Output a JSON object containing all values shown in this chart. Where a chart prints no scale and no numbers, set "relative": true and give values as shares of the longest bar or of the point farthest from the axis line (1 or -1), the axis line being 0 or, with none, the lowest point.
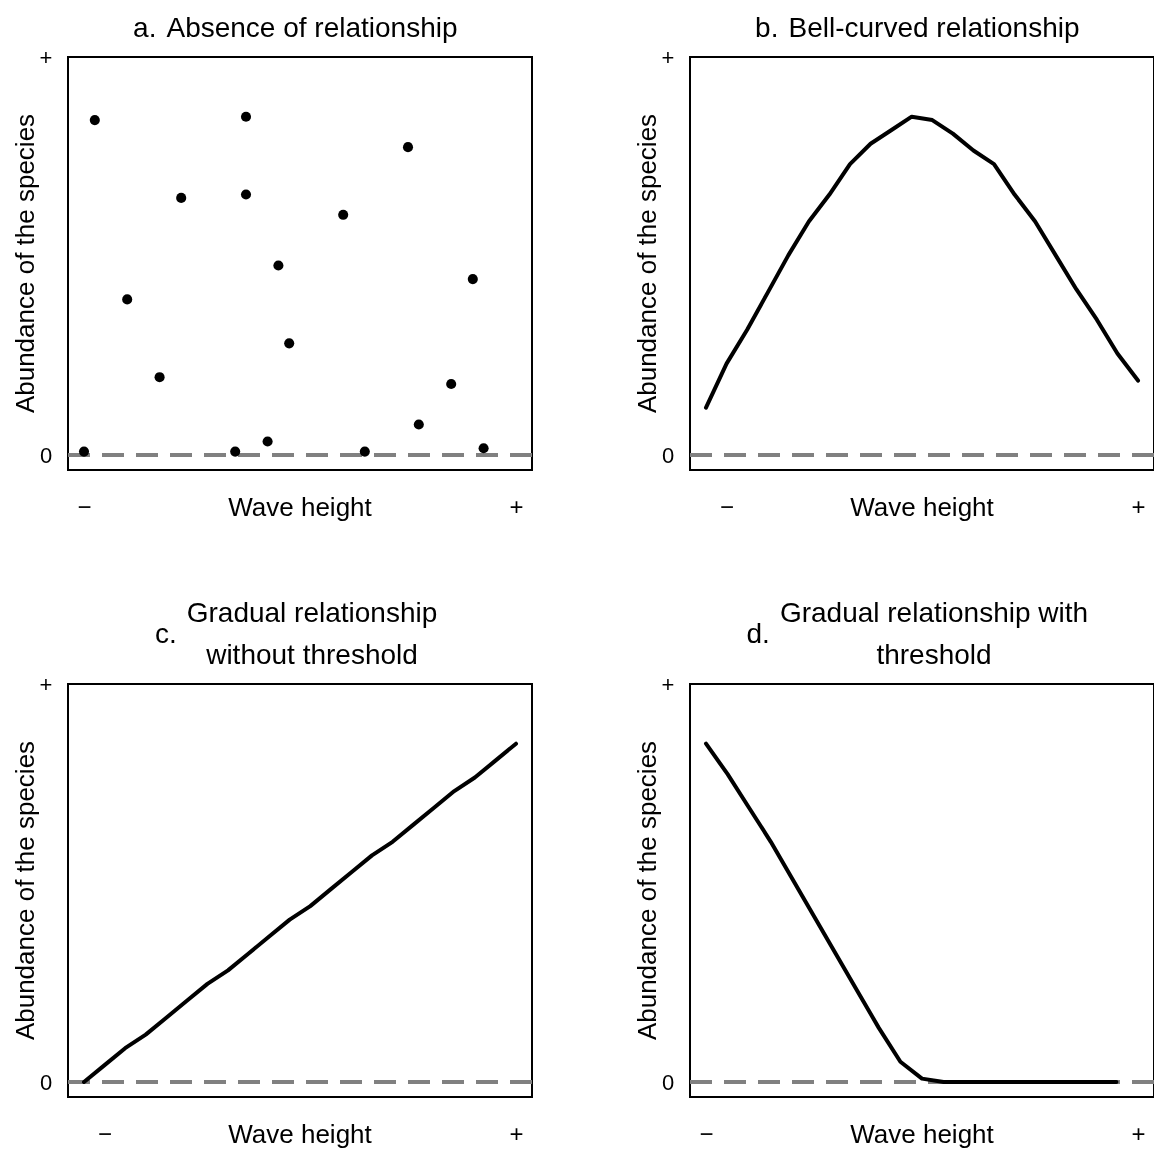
{
  "chart_data": [
    {
      "type": "scatter",
      "relative": true,
      "title": "Absence of relationship",
      "annotations": [
        "a.",
        "+",
        "0"
      ],
      "xlabel": "Wave height",
      "ylabel": "Abundance of the species",
      "marker": "circle",
      "categories": [
        "−",
        null,
        null,
        null,
        null,
        null,
        null,
        null,
        null,
        null,
        null,
        null,
        null,
        null,
        null,
        null,
        null,
        null,
        null,
        null,
        null,
        null,
        null,
        null,
        null,
        null,
        null,
        null,
        null,
        null,
        null,
        null,
        null,
        null,
        null,
        null,
        null,
        null,
        null,
        null,
        "+"
      ],
      "series": [
        {
          "color": "#000000",
          "values": [
            0.01,
            0.99,
            null,
            null,
            0.46,
            null,
            null,
            0.23,
            null,
            0.76,
            null,
            null,
            null,
            null,
            0.01,
            1,
            null,
            0.04,
            0.56,
            0.33,
            null,
            null,
            null,
            null,
            0.71,
            null,
            0.01,
            null,
            null,
            null,
            0.91,
            0.09,
            null,
            null,
            0.21,
            null,
            0.52,
            0.02,
            null,
            null,
            null
          ]
        },
        {
          "color": "#000000",
          "values": [
            null,
            null,
            null,
            null,
            null,
            null,
            null,
            null,
            null,
            null,
            null,
            null,
            null,
            null,
            null,
            0.77,
            null,
            null,
            null,
            null,
            null,
            null,
            null,
            null,
            null,
            null,
            null,
            null,
            null,
            null,
            null,
            null,
            null,
            null,
            null,
            null,
            null,
            null,
            null,
            null,
            null
          ]
        }
      ]
    },
    {
      "type": "line",
      "relative": true,
      "title": "Bell-curved relationship",
      "annotations": [
        "b.",
        "+",
        "0"
      ],
      "xlabel": "Wave height",
      "ylabel": "Abundance of the species",
      "marker": "none",
      "line_style": "solid",
      "categories": [
        null,
        "−",
        null,
        null,
        null,
        null,
        null,
        null,
        null,
        null,
        null,
        null,
        null,
        null,
        null,
        null,
        null,
        null,
        null,
        null,
        null,
        "+"
      ],
      "series": [
        {
          "color": "#000000",
          "values": [
            0.14,
            0.27,
            0.37,
            0.48,
            0.59,
            0.69,
            0.77,
            0.86,
            0.92,
            0.96,
            1,
            0.99,
            0.95,
            0.9,
            0.86,
            0.77,
            0.69,
            0.59,
            0.49,
            0.4,
            0.3,
            0.22
          ]
        }
      ]
    },
    {
      "type": "line",
      "relative": true,
      "title": "Gradual relationship without threshold",
      "annotations": [
        "c.",
        "+",
        "0"
      ],
      "xlabel": "Wave height",
      "ylabel": "Abundance of the species",
      "marker": "none",
      "line_style": "solid",
      "categories": [
        null,
        "−",
        null,
        null,
        null,
        null,
        null,
        null,
        null,
        null,
        null,
        null,
        null,
        null,
        null,
        null,
        null,
        null,
        null,
        null,
        null,
        "+"
      ],
      "series": [
        {
          "color": "#000000",
          "values": [
            0,
            0.05,
            0.1,
            0.14,
            0.19,
            0.24,
            0.29,
            0.33,
            0.38,
            0.43,
            0.48,
            0.52,
            0.57,
            0.62,
            0.67,
            0.71,
            0.76,
            0.81,
            0.86,
            0.9,
            0.95,
            1
          ]
        }
      ]
    },
    {
      "type": "line",
      "relative": true,
      "title": "Gradual relationship with threshold",
      "annotations": [
        "d.",
        "+",
        "0"
      ],
      "xlabel": "Wave height",
      "ylabel": "Abundance of the species",
      "marker": "none",
      "line_style": "solid",
      "categories": [
        "−",
        null,
        null,
        null,
        null,
        null,
        null,
        null,
        null,
        null,
        null,
        null,
        null,
        null,
        null,
        null,
        null,
        null,
        null,
        null,
        "+"
      ],
      "series": [
        {
          "color": "#000000",
          "values": [
            1,
            0.91,
            0.81,
            0.71,
            0.6,
            0.49,
            0.38,
            0.27,
            0.16,
            0.06,
            0.01,
            0,
            0,
            0,
            0,
            0,
            0,
            0,
            0,
            0,
            null
          ]
        }
      ]
    }
  ]
}
